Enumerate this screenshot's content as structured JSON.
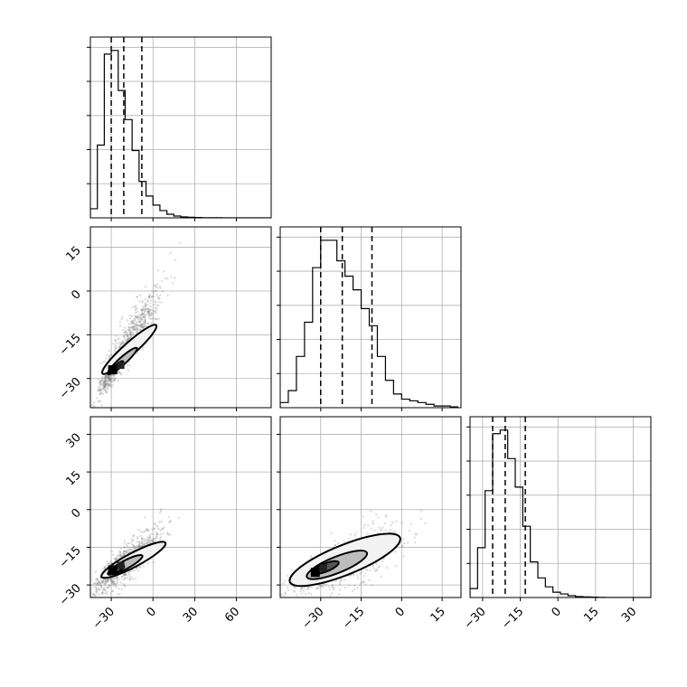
{
  "chart_data": {
    "type": "corner",
    "parameters": 3,
    "panels": [
      {
        "row": 0,
        "col": 0,
        "type": "histogram",
        "xlim": [
          -45,
          85
        ],
        "xticks": [
          -30,
          0,
          30,
          60
        ],
        "bins": [
          -45,
          -40,
          -35,
          -30,
          -25,
          -20,
          -15,
          -10,
          -5,
          0,
          5,
          10,
          15,
          20,
          25,
          30,
          35,
          40,
          45,
          50,
          55,
          60,
          65,
          70,
          75,
          80,
          85
        ],
        "counts": [
          5,
          40,
          90,
          92,
          70,
          54,
          37,
          20,
          12,
          7,
          4,
          2,
          1,
          0.5,
          0.3,
          0.2,
          0.1,
          0.1,
          0.1,
          0,
          0,
          0,
          0,
          0,
          0,
          0
        ],
        "quantiles": [
          -30,
          -21,
          -8
        ],
        "show_x_labels": false,
        "show_y_labels": false
      },
      {
        "row": 1,
        "col": 0,
        "type": "density2d",
        "xlim": [
          -45,
          85
        ],
        "ylim": [
          -40,
          22
        ],
        "xticks": [
          -30,
          0,
          30,
          60
        ],
        "yticks": [
          -30,
          -15,
          0,
          15
        ],
        "ytick_labels": [
          "−30",
          "−15",
          "0",
          "15"
        ],
        "mean": [
          -15,
          -15
        ],
        "std": [
          11,
          9
        ],
        "corr": 0.9,
        "mode": [
          -29,
          -27
        ],
        "contour_levels": [
          {
            "center": [
              -17,
              -20
            ],
            "rx": 26,
            "ry": 4.5,
            "angle": 42
          },
          {
            "center": [
              -22,
              -24
            ],
            "rx": 14,
            "ry": 2.6,
            "angle": 42
          },
          {
            "center": [
              -26,
              -26
            ],
            "rx": 6,
            "ry": 1.5,
            "angle": 42
          }
        ],
        "show_x_labels": false,
        "show_y_labels": true
      },
      {
        "row": 1,
        "col": 1,
        "type": "histogram",
        "xlim": [
          -45,
          22
        ],
        "xticks": [
          -30,
          -15,
          0,
          15
        ],
        "bins": [
          -45,
          -42,
          -39,
          -36,
          -33,
          -30,
          -27,
          -24,
          -21,
          -18,
          -15,
          -12,
          -9,
          -6,
          -3,
          0,
          3,
          6,
          9,
          12,
          15,
          18,
          21
        ],
        "counts": [
          3,
          10,
          30,
          50,
          82,
          98,
          98,
          86,
          77,
          69,
          58,
          48,
          30,
          16,
          8,
          5,
          4,
          3,
          2,
          1,
          1,
          0.5
        ],
        "quantiles": [
          -30,
          -22,
          -11
        ],
        "show_x_labels": false,
        "show_y_labels": false
      },
      {
        "row": 2,
        "col": 0,
        "type": "density2d",
        "xlim": [
          -45,
          85
        ],
        "ylim": [
          -35,
          37
        ],
        "xticks": [
          -30,
          0,
          30,
          60
        ],
        "yticks": [
          -30,
          -15,
          0,
          15,
          30
        ],
        "xtick_labels": [
          "−30",
          "0",
          "30",
          "60"
        ],
        "ytick_labels": [
          "−30",
          "−15",
          "0",
          "15",
          "30"
        ],
        "mean": [
          -16,
          -20
        ],
        "std": [
          12,
          7
        ],
        "corr": 0.85,
        "mode": [
          -29,
          -24
        ],
        "contour_levels": [
          {
            "center": [
              -14,
              -20
            ],
            "rx": 26,
            "ry": 5,
            "angle": 28
          },
          {
            "center": [
              -20,
              -22
            ],
            "rx": 14,
            "ry": 3,
            "angle": 28
          },
          {
            "center": [
              -26,
              -24
            ],
            "rx": 6,
            "ry": 1.6,
            "angle": 28
          }
        ],
        "show_x_labels": true,
        "show_y_labels": true
      },
      {
        "row": 2,
        "col": 1,
        "type": "density2d",
        "xlim": [
          -45,
          22
        ],
        "ylim": [
          -35,
          37
        ],
        "xticks": [
          -30,
          -15,
          0,
          15
        ],
        "yticks": [
          -30,
          -15,
          0,
          15,
          30
        ],
        "xtick_labels": [
          "−30",
          "−15",
          "0",
          "15"
        ],
        "mean": [
          -18,
          -20
        ],
        "std": [
          9,
          7
        ],
        "corr": 0.7,
        "mode": [
          -32,
          -25
        ],
        "contour_levels": [
          {
            "center": [
              -21,
              -20
            ],
            "rx": 22,
            "ry": 5.5,
            "angle": 22
          },
          {
            "center": [
              -24,
              -22
            ],
            "rx": 12,
            "ry": 3,
            "angle": 22
          },
          {
            "center": [
              -28,
              -23
            ],
            "rx": 5,
            "ry": 1.5,
            "angle": 22
          }
        ],
        "show_x_labels": true,
        "show_y_labels": false
      },
      {
        "row": 2,
        "col": 2,
        "type": "histogram",
        "xlim": [
          -35,
          37
        ],
        "xticks": [
          -30,
          -15,
          0,
          15,
          30
        ],
        "xtick_labels": [
          "−30",
          "−15",
          "0",
          "15",
          "30"
        ],
        "bins": [
          -35,
          -32,
          -29,
          -26,
          -23,
          -20,
          -17,
          -14,
          -11,
          -8,
          -5,
          -2,
          1,
          4,
          7,
          10,
          13,
          16,
          19,
          22,
          25,
          28,
          31,
          34,
          37
        ],
        "counts": [
          5,
          28,
          60,
          92,
          94,
          78,
          62,
          40,
          20,
          11,
          6,
          3,
          2,
          1,
          0.5,
          0.3,
          0.2,
          0.1,
          0,
          0,
          0,
          0,
          0,
          0
        ],
        "quantiles": [
          -26,
          -21,
          -13
        ],
        "show_x_labels": true,
        "show_y_labels": false
      }
    ]
  }
}
